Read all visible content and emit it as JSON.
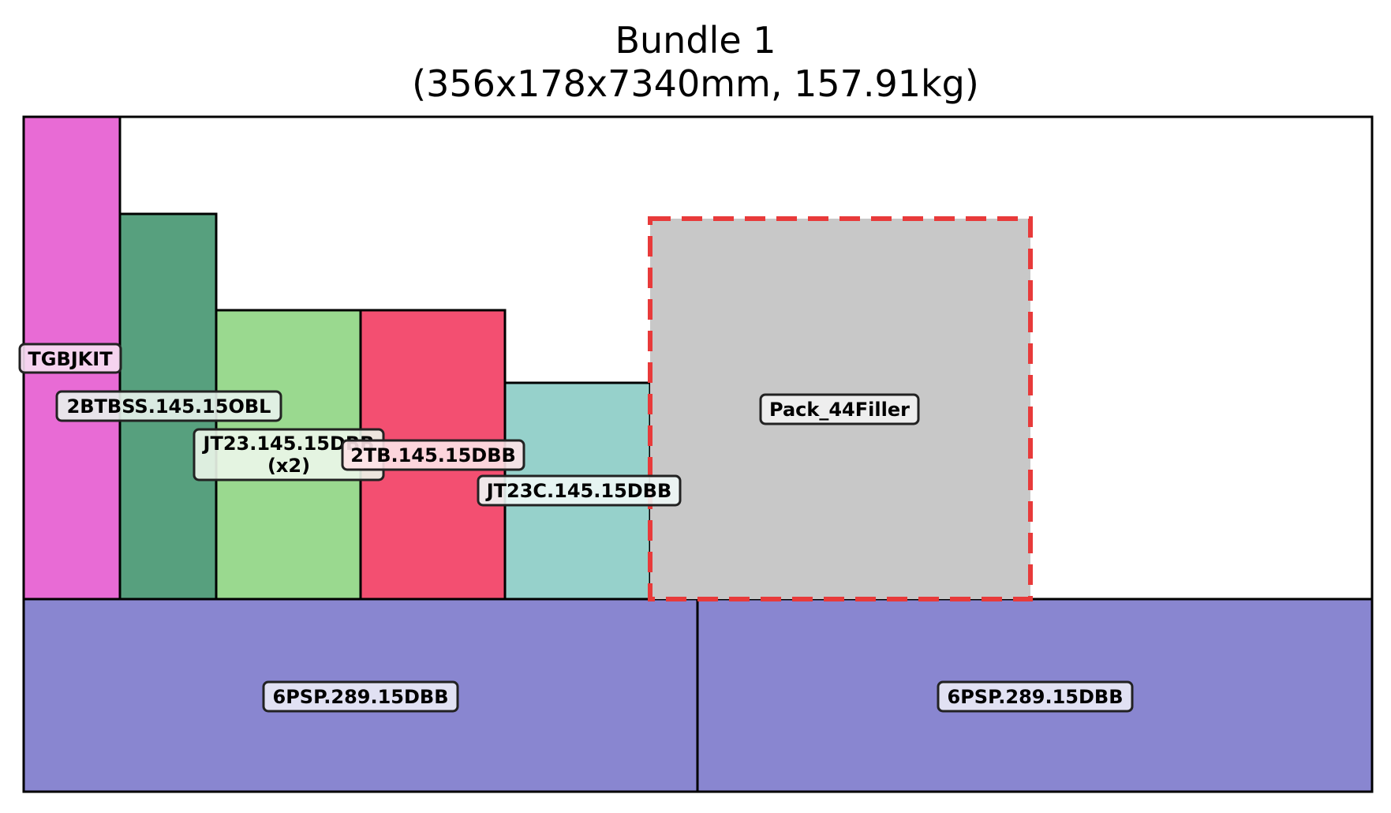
{
  "title": {
    "line1": "Bundle 1",
    "line2": "(356x178x7340mm, 157.91kg)"
  },
  "items": [
    {
      "id": "tgbjkit",
      "label": "TGBJKIT",
      "color": "#e86bd5"
    },
    {
      "id": "2btbss",
      "label": "2BTBSS.145.15OBL",
      "color": "#57a07e"
    },
    {
      "id": "jt23",
      "label": "JT23.145.15DBB",
      "label2": "(x2)",
      "color": "#9ad98f"
    },
    {
      "id": "2tb",
      "label": "2TB.145.15DBB",
      "color": "#f34f71"
    },
    {
      "id": "jt23c",
      "label": "JT23C.145.15DBB",
      "color": "#96d1cb"
    },
    {
      "id": "filler",
      "label": "Pack_44Filler",
      "color": "#c8c8c8",
      "outline_color": "#e83a3a",
      "style": "dashed"
    },
    {
      "id": "6psp-a",
      "label": "6PSP.289.15DBB",
      "color": "#8986d0"
    },
    {
      "id": "6psp-b",
      "label": "6PSP.289.15DBB",
      "color": "#8986d0"
    }
  ]
}
